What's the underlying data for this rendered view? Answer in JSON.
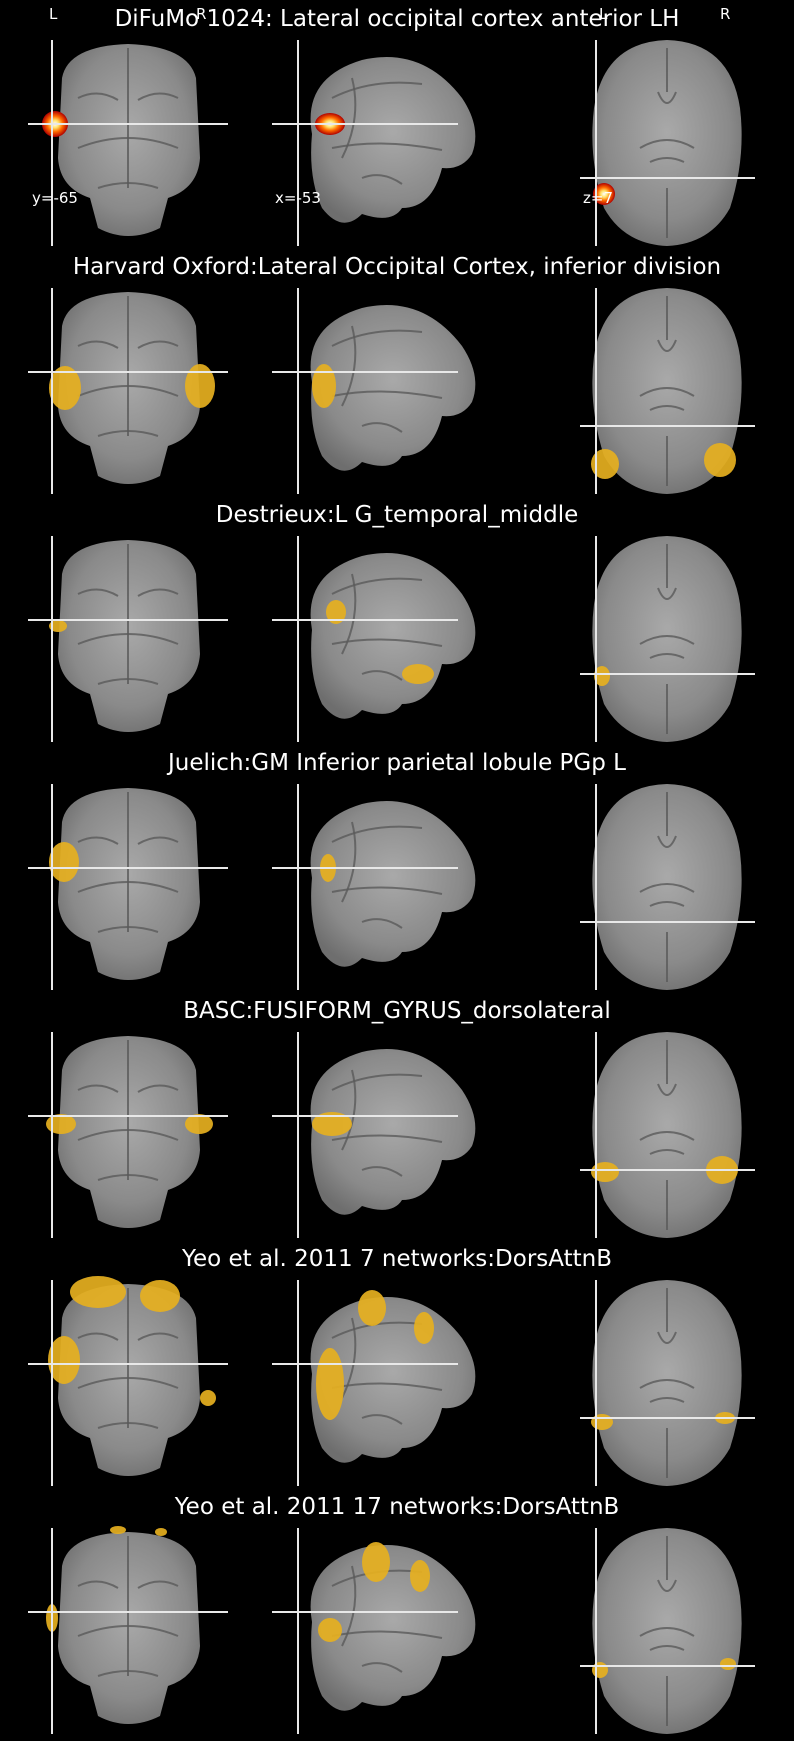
{
  "figure": {
    "colors": {
      "background": "#000000",
      "brain_gray": "#8a8a8a",
      "atlas_overlay": "#e6b020",
      "crosshair": "#e8e8e8"
    },
    "orientation_labels": {
      "left": "L",
      "right": "R"
    },
    "coordinates": {
      "coronal": "y=-65",
      "sagittal": "x=-53",
      "axial": "z=7"
    },
    "panels": [
      {
        "title": "DiFuMo 1024: Lateral occipital cortex anterior LH",
        "overlay": "hot-blob"
      },
      {
        "title": "Harvard Oxford:Lateral Occipital Cortex, inferior division",
        "overlay": "atlas-region"
      },
      {
        "title": "Destrieux:L G_temporal_middle",
        "overlay": "atlas-region"
      },
      {
        "title": "Juelich:GM Inferior parietal lobule PGp L",
        "overlay": "atlas-region"
      },
      {
        "title": "BASC:FUSIFORM_GYRUS_dorsolateral",
        "overlay": "atlas-region"
      },
      {
        "title": "Yeo et al. 2011 7 networks:DorsAttnB",
        "overlay": "atlas-region"
      },
      {
        "title": "Yeo et al. 2011 17 networks:DorsAttnB",
        "overlay": "atlas-region"
      }
    ]
  }
}
